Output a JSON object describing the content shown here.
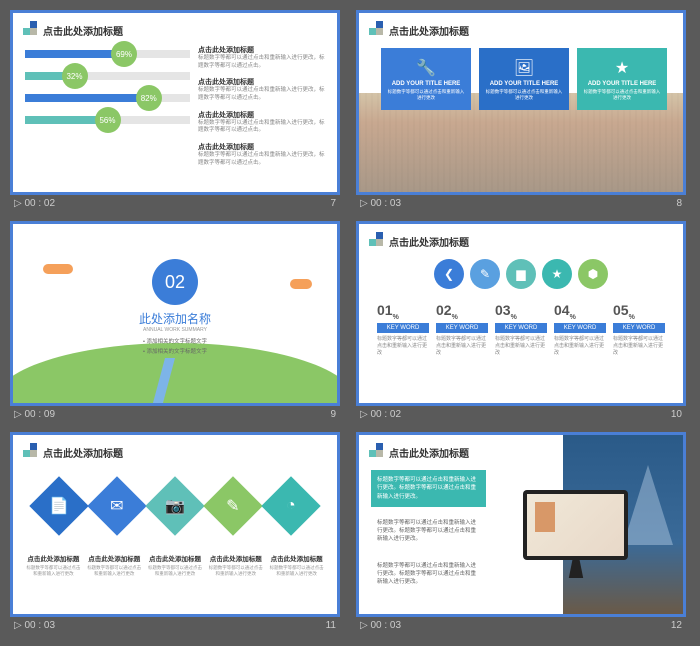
{
  "common": {
    "title": "点击此处添加标题",
    "body_placeholder": "标题数字等都可以通过点击和重新输入进行更改，标题数字等都可以通过点击。"
  },
  "slide7": {
    "footer_time": "00 : 02",
    "page": "7",
    "bars": [
      {
        "value": 69,
        "fill": "#3b7dd8",
        "circle": "#8bc766",
        "width_pct": 60
      },
      {
        "value": 32,
        "fill": "#5fc0b8",
        "circle": "#8bc766",
        "width_pct": 30
      },
      {
        "value": 82,
        "fill": "#3b7dd8",
        "circle": "#8bc766",
        "width_pct": 75
      },
      {
        "value": 56,
        "fill": "#5fc0b8",
        "circle": "#8bc766",
        "width_pct": 50
      }
    ],
    "right_heading": "点击此处添加标题"
  },
  "slide8": {
    "footer_time": "00 : 03",
    "page": "8",
    "cards": [
      {
        "bg": "#3b7dd8",
        "icon": "🔧",
        "title": "ADD YOUR TITLE HERE",
        "desc": "标题数字等都可以通过点击和重新输入进行更改"
      },
      {
        "bg": "#2a6fc8",
        "icon": "🖼",
        "title": "ADD YOUR TITLE HERE",
        "desc": "标题数字等都可以通过点击和重新输入进行更改"
      },
      {
        "bg": "#3bb8b0",
        "icon": "★",
        "title": "ADD YOUR TITLE HERE",
        "desc": "标题数字等都可以通过点击和重新输入进行更改"
      }
    ]
  },
  "slide9": {
    "footer_time": "00 : 09",
    "page": "9",
    "number": "02",
    "heading": "此处添加名称",
    "sub": "ANNUAL  WORK  SUMMARY",
    "bullet": "添加相关的文字标题文字"
  },
  "slide10": {
    "footer_time": "00 : 02",
    "page": "10",
    "circles": [
      {
        "bg": "#3b7dd8",
        "icon": "❮"
      },
      {
        "bg": "#5aa0e0",
        "icon": "✎"
      },
      {
        "bg": "#5fc0b8",
        "icon": "▆"
      },
      {
        "bg": "#3bb8b0",
        "icon": "★"
      },
      {
        "bg": "#8bc766",
        "icon": "⬢"
      }
    ],
    "cols": [
      {
        "n": "01",
        "kw": "KEY WORD"
      },
      {
        "n": "02",
        "kw": "KEY WORD"
      },
      {
        "n": "03",
        "kw": "KEY WORD"
      },
      {
        "n": "04",
        "kw": "KEY WORD"
      },
      {
        "n": "05",
        "kw": "KEY WORD"
      }
    ],
    "col_text": "标题数字等都可以通过点击和重新输入进行更改"
  },
  "slide11": {
    "footer_time": "00 : 03",
    "page": "11",
    "diamonds": [
      {
        "bg": "#2a6fc8",
        "icon": "📄"
      },
      {
        "bg": "#3b7dd8",
        "icon": "✉"
      },
      {
        "bg": "#5fc0b8",
        "icon": "📷"
      },
      {
        "bg": "#8bc766",
        "icon": "✎"
      },
      {
        "bg": "#3bb8b0",
        "icon": "◔"
      }
    ],
    "label_h": "点击此处添加标题",
    "label_t": "标题数字等都可以通过点击和重新输入进行更改"
  },
  "slide12": {
    "footer_time": "00 : 03",
    "page": "12",
    "box_a_bg": "#3bb8b0",
    "box_a_color": "#ffffff",
    "box_text": "标题数字等都可以通过点击和重新输入进行更改。标题数字等都可以通过点击和重新输入进行更改。"
  }
}
